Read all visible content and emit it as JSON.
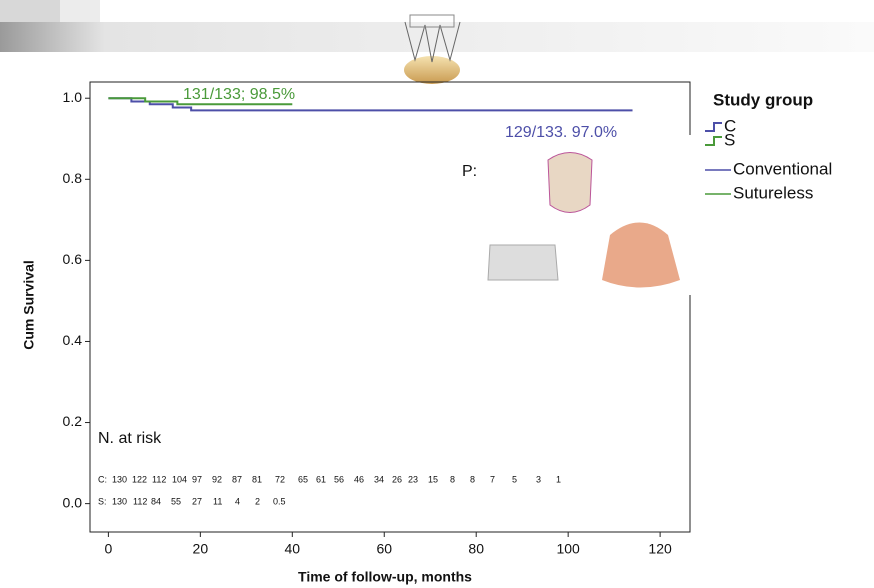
{
  "chart_data": {
    "type": "step",
    "xlabel": "Time of follow-up, months",
    "ylabel": "Cum Survival",
    "xlim": [
      -4,
      126.5
    ],
    "ylim": [
      -0.07,
      1.04
    ],
    "xticks": [
      0,
      20,
      40,
      60,
      80,
      100,
      120
    ],
    "yticks": [
      {
        "value": 0,
        "label": "0.0"
      },
      {
        "value": 0.2,
        "label": "0.2"
      },
      {
        "value": 0.4,
        "label": "0.4"
      },
      {
        "value": 0.6,
        "label": "0.6"
      },
      {
        "value": 0.8,
        "label": "0.8"
      },
      {
        "value": 1,
        "label": "1.0"
      }
    ],
    "series": [
      {
        "name": "Conventional",
        "short": "C",
        "color": "#4d4fa8",
        "x": [
          0,
          5,
          5,
          9,
          9,
          14,
          14,
          18,
          18,
          114
        ],
        "values": [
          1,
          1,
          0.992,
          0.992,
          0.985,
          0.985,
          0.977,
          0.977,
          0.97,
          0.97
        ]
      },
      {
        "name": "Sutureless",
        "short": "S",
        "color": "#4a9a3a",
        "x": [
          0,
          8,
          8,
          15,
          15,
          40
        ],
        "values": [
          1,
          1,
          0.992,
          0.992,
          0.985,
          0.985
        ]
      }
    ],
    "legend": {
      "title": "Study group"
    },
    "annotations": [
      "131/133; 98.5%",
      "129/133. 97.0%",
      "P:"
    ],
    "risk_table": {
      "title": "N. at risk",
      "rows": [
        [
          "C:",
          "130",
          "122",
          "112",
          "104",
          "97",
          "92",
          "87",
          "81",
          "72",
          "65",
          "61",
          "56",
          "46",
          "34",
          "26",
          "23",
          "15",
          "8",
          "8",
          "7",
          "5",
          "3",
          "1"
        ],
        [
          "S:",
          "130",
          "112",
          "84",
          "55",
          "27",
          "11",
          "4",
          "2",
          "0.5"
        ]
      ]
    }
  }
}
